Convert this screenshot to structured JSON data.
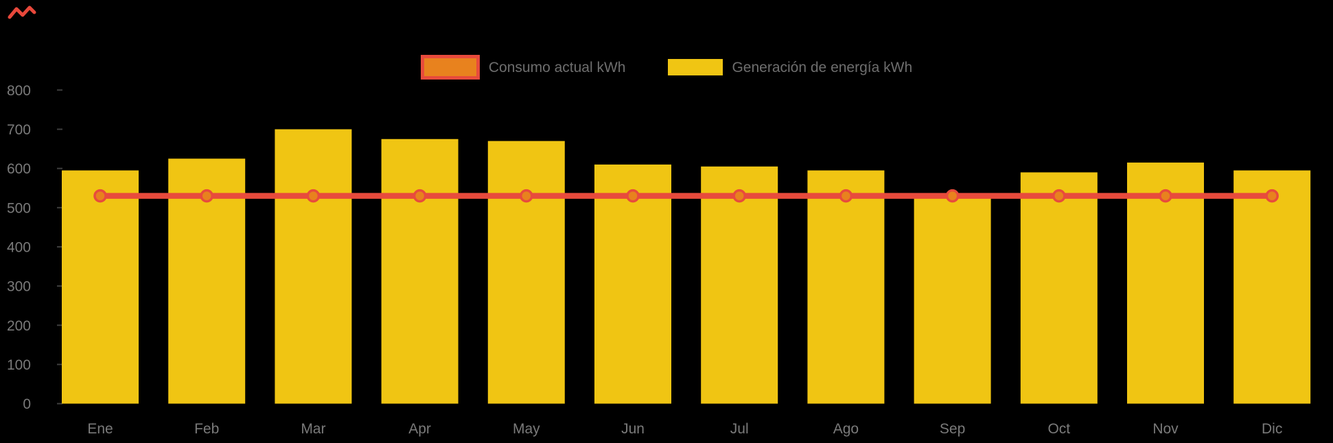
{
  "page": {
    "background": "#000000"
  },
  "legend": {
    "position": "top-center",
    "text_color": "#6E6E6E",
    "items": [
      {
        "label": "Consumo actual kWh",
        "swatch": "orange-rect-red-border",
        "fill": "#E8821E",
        "border": "#E84B3C"
      },
      {
        "label": "Generación de energía kWh",
        "swatch": "yellow-rect",
        "fill": "#F0C513"
      }
    ]
  },
  "axes": {
    "y_tick_labels": [
      "0",
      "100",
      "200",
      "300",
      "400",
      "500",
      "600",
      "700",
      "800"
    ],
    "x_tick_labels": [
      "Ene",
      "Feb",
      "Mar",
      "Apr",
      "May",
      "Jun",
      "Jul",
      "Ago",
      "Sep",
      "Oct",
      "Nov",
      "Dic"
    ],
    "label_color": "#7A7A7A",
    "tick_mark_color": "#3F3F3F"
  },
  "chart_data": {
    "type": "bar",
    "title": "",
    "xlabel": "",
    "ylabel": "",
    "categories": [
      "Ene",
      "Feb",
      "Mar",
      "Apr",
      "May",
      "Jun",
      "Jul",
      "Ago",
      "Sep",
      "Oct",
      "Nov",
      "Dic"
    ],
    "series": [
      {
        "name": "Generación de energía kWh",
        "type": "bar",
        "color": "#F0C513",
        "values": [
          595,
          625,
          700,
          675,
          670,
          610,
          605,
          595,
          535,
          590,
          615,
          595
        ]
      },
      {
        "name": "Consumo actual kWh",
        "type": "line",
        "color": "#E84B3C",
        "marker_fill": "#E8821E",
        "marker_stroke": "#E84B3C",
        "values": [
          530,
          530,
          530,
          530,
          530,
          530,
          530,
          530,
          530,
          530,
          530,
          530
        ]
      }
    ],
    "ylim": [
      0,
      800
    ],
    "yticks": [
      0,
      100,
      200,
      300,
      400,
      500,
      600,
      700,
      800
    ],
    "grid": false,
    "legend_position": "top-center",
    "background": "#000000"
  },
  "brand": {
    "logo_color": "#E8483B"
  }
}
